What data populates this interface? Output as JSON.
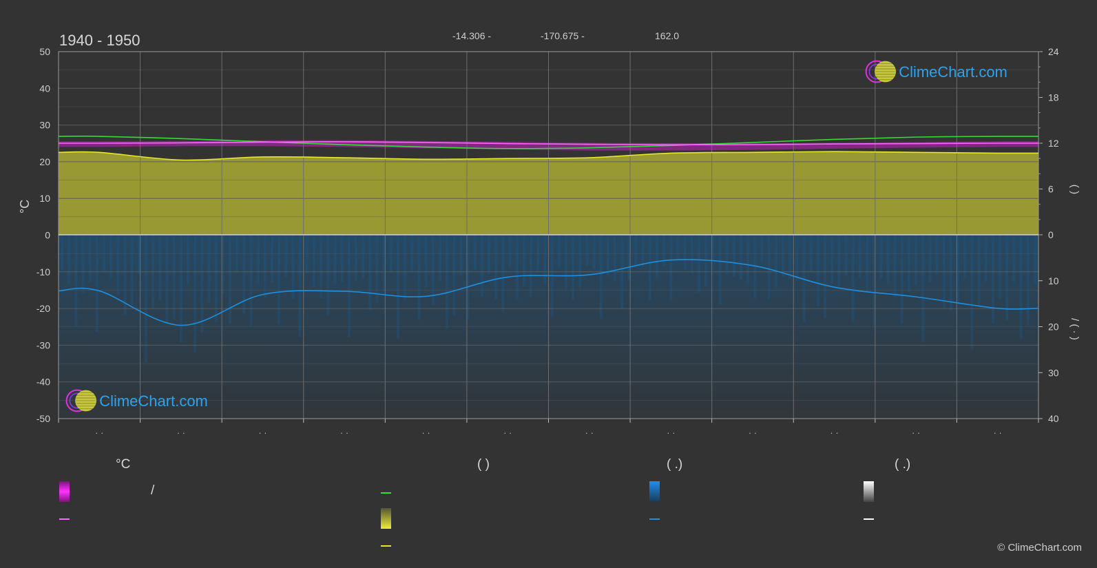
{
  "header": {
    "title": "1940 - 1950",
    "lat_text": "-14.306 -",
    "lon_text": "-170.675 -",
    "elev_text": "162.0"
  },
  "watermark": {
    "brand": "ClimeChart.com",
    "copyright": "© ClimeChart.com"
  },
  "legend": {
    "col1_head": "°C",
    "col1_item1": "/",
    "col2_head": "(           )",
    "col3_head": "(   .)",
    "col4_head": "(   .)"
  },
  "colors": {
    "background": "#333333",
    "grid": "#5c5c5c",
    "temp_range_fill": "#c21ec2",
    "temp_mean": "#ff66ff",
    "daylight": "#33dd33",
    "sunshine_fill": "#bcbc35",
    "sunshine_line": "#e8e82a",
    "rain_fill": "#1c5a8a",
    "rain_line": "#1e90e0",
    "brand": "#2aa3f0"
  },
  "chart_data": {
    "type": "line",
    "title": "1940 - 1950",
    "ylabel_left": "°C",
    "ylim_left": [
      -50,
      50
    ],
    "yticks_left": [
      50,
      40,
      30,
      20,
      10,
      0,
      -10,
      -20,
      -30,
      -40,
      -50
    ],
    "ylim_right_top": [
      0,
      24
    ],
    "yticks_right_top": [
      24,
      18,
      12,
      6,
      0
    ],
    "ylim_right_bottom": [
      0,
      40
    ],
    "yticks_right_bottom": [
      10,
      20,
      30,
      40
    ],
    "right_top_label": "(   )",
    "right_bottom_label": "/  (  ·  )",
    "months": 12,
    "month_tick_label": "· ·",
    "grid": true,
    "series": [
      {
        "key": "temp_max",
        "values": [
          25.5,
          25.6,
          25.8,
          25.8,
          25.6,
          25.4,
          25.1,
          25.0,
          25.0,
          25.1,
          25.3,
          25.5
        ]
      },
      {
        "key": "temp_mean",
        "values": [
          25.0,
          25.1,
          25.3,
          25.4,
          25.2,
          24.9,
          24.7,
          24.6,
          24.6,
          24.8,
          24.9,
          25.0
        ]
      },
      {
        "key": "temp_min",
        "values": [
          24.0,
          24.2,
          24.2,
          24.0,
          23.6,
          23.3,
          23.0,
          23.0,
          23.2,
          23.5,
          23.8,
          24.0
        ]
      },
      {
        "key": "daylight_hours",
        "values": [
          12.9,
          12.6,
          12.2,
          11.8,
          11.5,
          11.3,
          11.4,
          11.7,
          12.1,
          12.5,
          12.8,
          12.9
        ]
      },
      {
        "key": "sunshine_hours",
        "values": [
          10.8,
          9.8,
          10.2,
          10.1,
          9.9,
          10.0,
          10.1,
          10.7,
          10.8,
          10.9,
          10.8,
          10.7
        ]
      },
      {
        "key": "precipitation_mm",
        "values": [
          12.2,
          19.7,
          13.0,
          12.3,
          13.4,
          9.2,
          8.7,
          5.5,
          6.7,
          11.4,
          13.5,
          16.0
        ]
      }
    ]
  }
}
